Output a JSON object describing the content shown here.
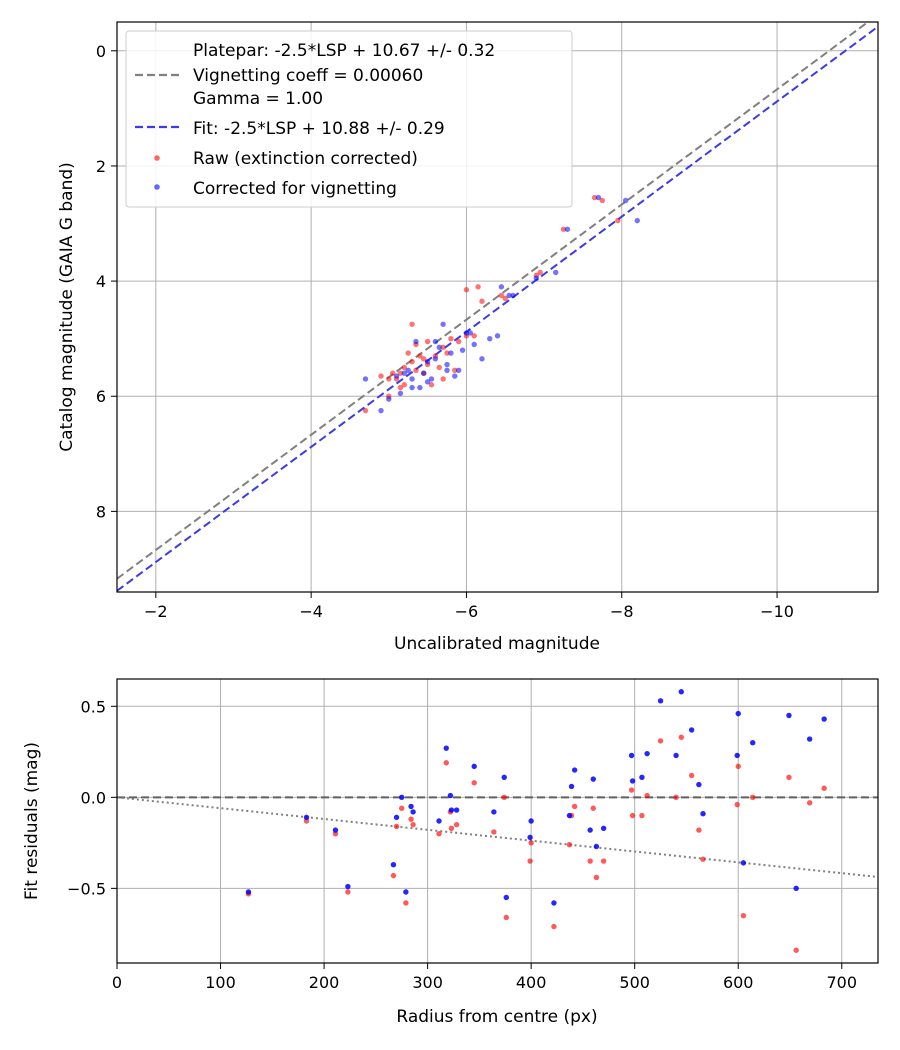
{
  "chart_data": [
    {
      "type": "scatter",
      "xlabel": "Uncalibrated magnitude",
      "ylabel": "Catalog magnitude (GAIA G band)",
      "xlim": [
        -1.5,
        -11.3
      ],
      "ylim": [
        9.4,
        -0.5
      ],
      "x_inverted": true,
      "y_inverted": true,
      "grid": true,
      "xticks": [
        -2,
        -4,
        -6,
        -8,
        -10
      ],
      "xtick_labels": [
        "−2",
        "−4",
        "−6",
        "−8",
        "−10"
      ],
      "yticks": [
        0,
        2,
        4,
        6,
        8
      ],
      "ytick_labels": [
        "0",
        "2",
        "4",
        "6",
        "8"
      ],
      "legend_position": "top-left",
      "legend": [
        {
          "label": "Platepar: -2.5*LSP + 10.67 +/- 0.32",
          "style": "none"
        },
        {
          "label": "Vignetting coeff = 0.00060",
          "style": "dashed-line",
          "color": "#808080"
        },
        {
          "label": "Gamma = 1.00",
          "style": "none"
        },
        {
          "label": "Fit: -2.5*LSP + 10.88 +/- 0.29",
          "style": "dashed-line",
          "color": "#3a3af0"
        },
        {
          "label": "Raw (extinction corrected)",
          "style": "marker",
          "color": "#ff0000"
        },
        {
          "label": "Corrected for vignetting",
          "style": "marker",
          "color": "#0000ff"
        }
      ],
      "lines": [
        {
          "name": "Platepar",
          "color": "#808080",
          "style": "dashed",
          "slope": 1,
          "intercept": 10.67
        },
        {
          "name": "Fit",
          "color": "#3a3af0",
          "style": "dashed",
          "slope": 1,
          "intercept": 10.88
        }
      ],
      "series": [
        {
          "name": "Raw (extinction corrected)",
          "color": "#ff0000",
          "points": [
            [
              -4.7,
              6.25
            ],
            [
              -4.9,
              5.65
            ],
            [
              -5.0,
              6.0
            ],
            [
              -5.05,
              5.6
            ],
            [
              -5.1,
              5.7
            ],
            [
              -5.15,
              5.85
            ],
            [
              -5.2,
              5.5
            ],
            [
              -5.25,
              5.25
            ],
            [
              -5.3,
              5.4
            ],
            [
              -5.3,
              4.75
            ],
            [
              -5.35,
              5.55
            ],
            [
              -5.35,
              5.1
            ],
            [
              -5.4,
              5.3
            ],
            [
              -5.45,
              5.6
            ],
            [
              -5.5,
              5.05
            ],
            [
              -5.55,
              5.8
            ],
            [
              -5.6,
              5.3
            ],
            [
              -5.65,
              5.5
            ],
            [
              -5.7,
              5.15
            ],
            [
              -5.75,
              5.25
            ],
            [
              -5.8,
              5.0
            ],
            [
              -5.85,
              5.55
            ],
            [
              -5.9,
              5.05
            ],
            [
              -6.0,
              4.95
            ],
            [
              -6.0,
              4.15
            ],
            [
              -6.1,
              4.95
            ],
            [
              -6.15,
              4.1
            ],
            [
              -6.2,
              4.35
            ],
            [
              -6.45,
              4.25
            ],
            [
              -6.5,
              4.3
            ],
            [
              -6.9,
              3.9
            ],
            [
              -6.95,
              3.85
            ],
            [
              -7.25,
              3.1
            ],
            [
              -7.65,
              2.55
            ],
            [
              -7.75,
              2.6
            ],
            [
              -7.95,
              2.95
            ],
            [
              -5.0,
              5.7
            ],
            [
              -5.15,
              5.6
            ],
            [
              -5.45,
              5.35
            ],
            [
              -5.7,
              5.7
            ],
            [
              -5.2,
              5.8
            ],
            [
              -5.5,
              5.45
            ]
          ]
        },
        {
          "name": "Corrected for vignetting",
          "color": "#0000ff",
          "points": [
            [
              -4.7,
              5.7
            ],
            [
              -4.9,
              6.25
            ],
            [
              -5.0,
              6.05
            ],
            [
              -5.1,
              5.65
            ],
            [
              -5.15,
              5.95
            ],
            [
              -5.25,
              5.55
            ],
            [
              -5.3,
              5.85
            ],
            [
              -5.35,
              5.05
            ],
            [
              -5.45,
              5.6
            ],
            [
              -5.5,
              5.4
            ],
            [
              -5.55,
              5.7
            ],
            [
              -5.6,
              5.35
            ],
            [
              -5.65,
              5.15
            ],
            [
              -5.7,
              4.75
            ],
            [
              -5.75,
              5.55
            ],
            [
              -5.8,
              5.25
            ],
            [
              -5.85,
              5.65
            ],
            [
              -5.9,
              5.55
            ],
            [
              -6.0,
              4.9
            ],
            [
              -6.1,
              5.1
            ],
            [
              -6.2,
              5.35
            ],
            [
              -6.3,
              5.0
            ],
            [
              -6.4,
              4.95
            ],
            [
              -6.45,
              4.1
            ],
            [
              -6.55,
              4.25
            ],
            [
              -6.6,
              4.25
            ],
            [
              -6.9,
              3.95
            ],
            [
              -7.15,
              3.85
            ],
            [
              -7.3,
              3.1
            ],
            [
              -7.7,
              2.55
            ],
            [
              -8.05,
              2.6
            ],
            [
              -8.2,
              2.95
            ],
            [
              -5.2,
              5.6
            ],
            [
              -5.4,
              5.85
            ],
            [
              -5.6,
              5.05
            ],
            [
              -5.95,
              5.2
            ],
            [
              -6.05,
              4.9
            ],
            [
              -5.3,
              5.7
            ],
            [
              -5.5,
              5.75
            ],
            [
              -5.75,
              5.45
            ]
          ]
        }
      ]
    },
    {
      "type": "scatter",
      "xlabel": "Radius from centre (px)",
      "ylabel": "Fit residuals (mag)",
      "xlim": [
        0,
        735
      ],
      "ylim": [
        -0.91,
        0.65
      ],
      "grid": true,
      "xticks": [
        0,
        100,
        200,
        300,
        400,
        500,
        600,
        700
      ],
      "xtick_labels": [
        "0",
        "100",
        "200",
        "300",
        "400",
        "500",
        "600",
        "700"
      ],
      "yticks": [
        0.5,
        0.0,
        -0.5
      ],
      "ytick_labels": [
        "0.5",
        "0.0",
        "−0.5"
      ],
      "lines": [
        {
          "name": "zero",
          "color": "#606060",
          "style": "dashed",
          "slope": 0,
          "intercept": 0
        },
        {
          "name": "vignetting",
          "color": "#808080",
          "style": "dotted",
          "slope": -0.000595,
          "intercept": 0
        }
      ],
      "series": [
        {
          "name": "Raw (extinction corrected)",
          "color": "#ff0000",
          "points": [
            [
              127,
              -0.53
            ],
            [
              183,
              -0.13
            ],
            [
              211,
              -0.2
            ],
            [
              223,
              -0.52
            ],
            [
              267,
              -0.43
            ],
            [
              270,
              -0.16
            ],
            [
              275,
              -0.06
            ],
            [
              279,
              -0.58
            ],
            [
              284,
              -0.12
            ],
            [
              286,
              -0.15
            ],
            [
              311,
              -0.2
            ],
            [
              318,
              0.19
            ],
            [
              322,
              -0.08
            ],
            [
              323,
              -0.17
            ],
            [
              328,
              -0.15
            ],
            [
              345,
              0.08
            ],
            [
              364,
              -0.19
            ],
            [
              374,
              0.0
            ],
            [
              376,
              -0.66
            ],
            [
              399,
              -0.35
            ],
            [
              400,
              -0.25
            ],
            [
              422,
              -0.71
            ],
            [
              437,
              -0.26
            ],
            [
              439,
              -0.1
            ],
            [
              442,
              -0.05
            ],
            [
              457,
              -0.35
            ],
            [
              460,
              -0.06
            ],
            [
              463,
              -0.44
            ],
            [
              470,
              -0.35
            ],
            [
              497,
              0.04
            ],
            [
              498,
              -0.1
            ],
            [
              507,
              -0.1
            ],
            [
              512,
              0.01
            ],
            [
              525,
              0.31
            ],
            [
              540,
              0.0
            ],
            [
              545,
              0.33
            ],
            [
              555,
              0.12
            ],
            [
              562,
              -0.18
            ],
            [
              566,
              -0.34
            ],
            [
              599,
              -0.04
            ],
            [
              600,
              0.17
            ],
            [
              605,
              -0.65
            ],
            [
              614,
              0.0
            ],
            [
              649,
              0.11
            ],
            [
              656,
              -0.84
            ],
            [
              669,
              -0.03
            ],
            [
              683,
              0.05
            ]
          ]
        },
        {
          "name": "Corrected for vignetting",
          "color": "#0000ff",
          "points": [
            [
              127,
              -0.52
            ],
            [
              183,
              -0.11
            ],
            [
              211,
              -0.18
            ],
            [
              223,
              -0.49
            ],
            [
              267,
              -0.37
            ],
            [
              270,
              -0.11
            ],
            [
              275,
              0.0
            ],
            [
              279,
              -0.52
            ],
            [
              284,
              -0.05
            ],
            [
              286,
              -0.08
            ],
            [
              311,
              -0.13
            ],
            [
              318,
              0.27
            ],
            [
              322,
              0.01
            ],
            [
              323,
              -0.07
            ],
            [
              328,
              -0.07
            ],
            [
              345,
              0.17
            ],
            [
              364,
              -0.08
            ],
            [
              374,
              0.11
            ],
            [
              376,
              -0.55
            ],
            [
              399,
              -0.22
            ],
            [
              400,
              -0.13
            ],
            [
              422,
              -0.58
            ],
            [
              437,
              -0.1
            ],
            [
              439,
              0.06
            ],
            [
              442,
              0.15
            ],
            [
              457,
              -0.18
            ],
            [
              460,
              0.1
            ],
            [
              463,
              -0.27
            ],
            [
              470,
              -0.17
            ],
            [
              497,
              0.23
            ],
            [
              498,
              0.09
            ],
            [
              507,
              0.11
            ],
            [
              512,
              0.24
            ],
            [
              525,
              0.53
            ],
            [
              540,
              0.23
            ],
            [
              545,
              0.58
            ],
            [
              555,
              0.37
            ],
            [
              562,
              0.07
            ],
            [
              566,
              -0.09
            ],
            [
              599,
              0.23
            ],
            [
              600,
              0.46
            ],
            [
              605,
              -0.36
            ],
            [
              614,
              0.3
            ],
            [
              649,
              0.45
            ],
            [
              656,
              -0.5
            ],
            [
              669,
              0.32
            ],
            [
              683,
              0.43
            ]
          ]
        }
      ]
    }
  ]
}
